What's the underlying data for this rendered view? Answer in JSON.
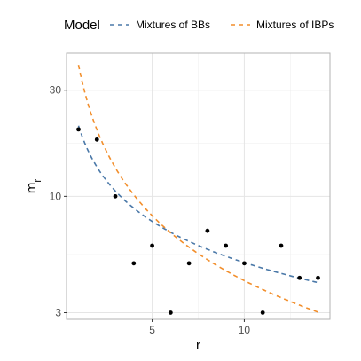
{
  "chart_data": {
    "type": "scatter",
    "xlabel": "r",
    "ylabel": "m",
    "ylabel_subscript": "r",
    "y_scale": "log",
    "xlim": [
      0.35,
      14.65
    ],
    "ylim": [
      2.8,
      44
    ],
    "x_ticks": [
      5,
      10
    ],
    "x_tick_labels": [
      "5",
      "10"
    ],
    "y_ticks": [
      3,
      10,
      30
    ],
    "y_tick_labels": [
      "3",
      "10",
      "30"
    ],
    "grid": true,
    "legend": {
      "title": "Model",
      "position": "top",
      "entries": [
        {
          "label": "Mixtures of BBs",
          "color": "#4a78a8"
        },
        {
          "label": "Mixtures of IBPs",
          "color": "#f28e2b"
        }
      ]
    },
    "points": [
      {
        "x": 1,
        "y": 20
      },
      {
        "x": 2,
        "y": 18
      },
      {
        "x": 3,
        "y": 10
      },
      {
        "x": 4,
        "y": 5
      },
      {
        "x": 5,
        "y": 6
      },
      {
        "x": 6,
        "y": 3
      },
      {
        "x": 7,
        "y": 5
      },
      {
        "x": 8,
        "y": 7
      },
      {
        "x": 9,
        "y": 6
      },
      {
        "x": 10,
        "y": 5
      },
      {
        "x": 11,
        "y": 3
      },
      {
        "x": 12,
        "y": 6
      },
      {
        "x": 13,
        "y": 4.3
      },
      {
        "x": 14,
        "y": 4.3
      }
    ],
    "series": [
      {
        "name": "Mixtures of BBs",
        "color": "#4a78a8",
        "style": "dashed",
        "x": [
          1,
          2,
          3,
          4,
          5,
          6,
          7,
          8,
          9,
          10,
          11,
          12,
          13,
          14
        ],
        "y": [
          20.4,
          13.9,
          10.9,
          9.0,
          7.6,
          6.7,
          6.1,
          5.7,
          5.3,
          5.0,
          4.75,
          4.55,
          4.35,
          4.2
        ]
      },
      {
        "name": "Mixtures of IBPs",
        "color": "#f28e2b",
        "style": "dashed",
        "x": [
          1,
          2,
          3,
          4,
          5,
          6,
          7,
          8,
          9,
          10,
          11,
          12,
          13,
          14
        ],
        "y": [
          40.0,
          20.1,
          13.4,
          10.0,
          8.0,
          6.7,
          5.8,
          5.1,
          4.6,
          4.2,
          3.85,
          3.55,
          3.3,
          3.1
        ]
      }
    ]
  }
}
